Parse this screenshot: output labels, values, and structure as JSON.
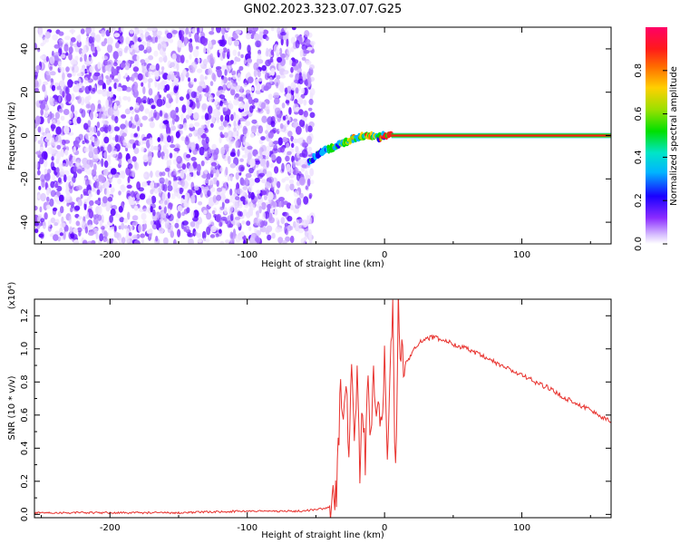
{
  "title": "GN02.2023.323.07.07.G25",
  "chart_data": [
    {
      "type": "heatmap",
      "xlabel": "Height of straight line (km)",
      "ylabel": "Frequency (Hz)",
      "xlim": [
        -255,
        165
      ],
      "ylim": [
        -50,
        50
      ],
      "x_ticks": [
        -200,
        -100,
        0,
        100
      ],
      "x_tick_labels": [
        "-200",
        "-100",
        "0",
        "100"
      ],
      "y_ticks": [
        -40,
        -20,
        0,
        20,
        40
      ],
      "y_tick_labels": [
        "-40",
        "-20",
        "0",
        "20",
        "40"
      ],
      "colorbar": {
        "label": "Normalized spectral amplitude",
        "range": [
          0,
          1
        ],
        "ticks": [
          0.0,
          0.2,
          0.4,
          0.6,
          0.8
        ],
        "tick_labels": [
          "0.0",
          "0.2",
          "0.4",
          "0.6",
          "0.8"
        ]
      },
      "regions": [
        {
          "x_range": [
            -255,
            -55
          ],
          "y_range": [
            -50,
            50
          ],
          "amplitude": "low noise (~0.0-0.15)"
        },
        {
          "x_range": [
            -55,
            5
          ],
          "y_range": [
            -15,
            3
          ],
          "amplitude": "rising trace (~0.1-0.8)"
        },
        {
          "x_range": [
            5,
            165
          ],
          "y_range": [
            -1,
            1
          ],
          "amplitude": "strong line at 0 Hz (~0.9-1.0)"
        }
      ],
      "trace": {
        "x": [
          -55,
          -50,
          -45,
          -40,
          -35,
          -30,
          -25,
          -20,
          -15,
          -10,
          -5,
          0,
          5,
          20,
          60,
          100,
          165
        ],
        "y": [
          -13,
          -9,
          -7,
          -6,
          -5,
          -3,
          -2,
          -1,
          0,
          0,
          -1,
          0,
          0,
          0,
          0,
          0,
          0
        ]
      },
      "colors": {
        "noise": "#7b2cff",
        "line_core": "#ff1a1a",
        "line_edge": "#00d400"
      }
    },
    {
      "type": "line",
      "xlabel": "Height of straight line (km)",
      "ylabel": "SNR (10 * v/v)",
      "multiplier_label": "(x10⁴)",
      "xlim": [
        -255,
        165
      ],
      "ylim": [
        -0.02,
        1.3
      ],
      "x_ticks": [
        -200,
        -100,
        0,
        100
      ],
      "x_tick_labels": [
        "-200",
        "-100",
        "0",
        "100"
      ],
      "y_ticks": [
        0.0,
        0.2,
        0.4,
        0.6,
        0.8,
        1.0,
        1.2
      ],
      "y_tick_labels": [
        "0.0",
        "0.2",
        "0.4",
        "0.6",
        "0.8",
        "1.0",
        "1.2"
      ],
      "series": [
        {
          "color": "#e8322e",
          "x": [
            -255,
            -200,
            -150,
            -100,
            -60,
            -40,
            -35,
            -32,
            -30,
            -28,
            -26,
            -24,
            -22,
            -20,
            -18,
            -16,
            -14,
            -12,
            -10,
            -8,
            -6,
            -4,
            -2,
            0,
            2,
            4,
            6,
            8,
            10,
            12,
            15,
            20,
            25,
            30,
            35,
            40,
            50,
            60,
            70,
            80,
            90,
            100,
            110,
            120,
            130,
            140,
            150,
            160,
            165
          ],
          "y": [
            0.01,
            0.01,
            0.01,
            0.02,
            0.02,
            0.04,
            0.15,
            0.75,
            0.5,
            0.82,
            0.3,
            0.95,
            0.4,
            0.88,
            0.2,
            0.7,
            0.35,
            0.8,
            0.45,
            0.9,
            0.55,
            0.65,
            0.48,
            0.98,
            0.3,
            0.95,
            1.2,
            0.2,
            1.25,
            0.95,
            0.9,
            0.98,
            1.04,
            1.06,
            1.07,
            1.06,
            1.03,
            1.0,
            0.96,
            0.92,
            0.88,
            0.84,
            0.8,
            0.76,
            0.71,
            0.67,
            0.63,
            0.58,
            0.56
          ]
        }
      ]
    }
  ]
}
